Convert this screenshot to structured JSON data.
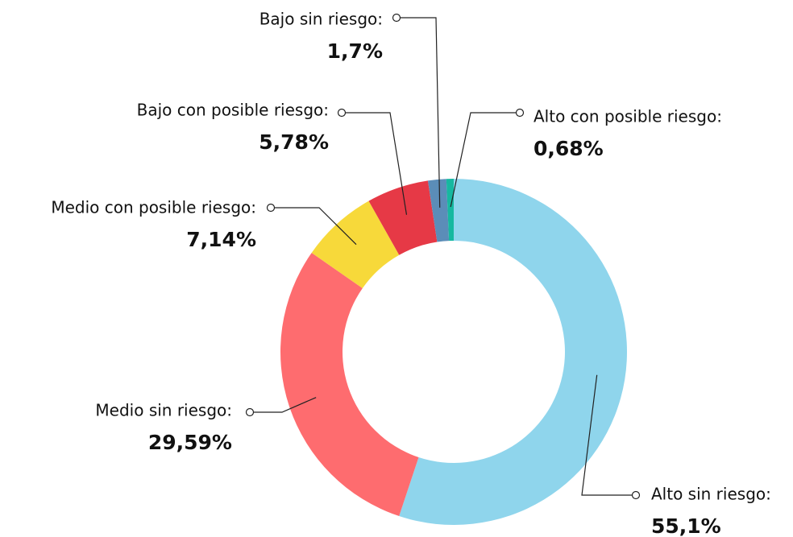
{
  "chart_data": {
    "type": "pie",
    "donut": true,
    "categories": [
      "Alto sin riesgo:",
      "Medio sin riesgo:",
      "Medio con posible riesgo:",
      "Bajo con posible riesgo:",
      "Bajo sin riesgo:",
      "Alto con posible riesgo:"
    ],
    "values": [
      55.1,
      29.59,
      7.14,
      5.78,
      1.7,
      0.68
    ],
    "value_labels": [
      "55,1%",
      "29,59%",
      "7,14%",
      "5,78%",
      "1,7%",
      "0,68%"
    ],
    "colors": [
      "#8fd5ec",
      "#fe6c6f",
      "#f7d93a",
      "#e63946",
      "#5b8db8",
      "#16b8a0"
    ]
  }
}
